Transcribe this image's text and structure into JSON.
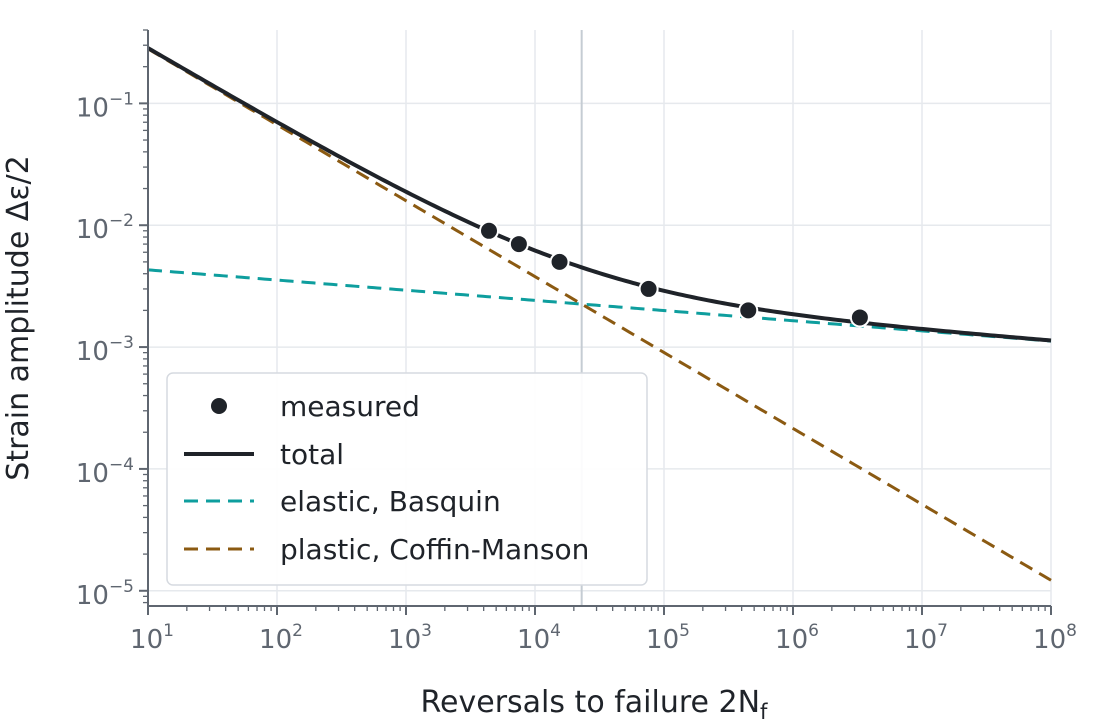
{
  "chart_data": {
    "type": "line",
    "xlabel": "Reversals to failure  2N",
    "xlabel_sub": "f",
    "ylabel": "Strain amplitude  Δε/2",
    "x_scale": "log",
    "y_scale": "log",
    "xlim": [
      10,
      100000000
    ],
    "ylim": [
      7.5e-06,
      0.4
    ],
    "grid": true,
    "legend_position": "lower-left",
    "transition_x": 23000,
    "x_ticks": [
      {
        "base": "10",
        "exp": "1",
        "value": 10
      },
      {
        "base": "10",
        "exp": "2",
        "value": 100
      },
      {
        "base": "10",
        "exp": "3",
        "value": 1000
      },
      {
        "base": "10",
        "exp": "4",
        "value": 10000
      },
      {
        "base": "10",
        "exp": "5",
        "value": 100000
      },
      {
        "base": "10",
        "exp": "6",
        "value": 1000000
      },
      {
        "base": "10",
        "exp": "7",
        "value": 10000000
      },
      {
        "base": "10",
        "exp": "8",
        "value": 100000000
      }
    ],
    "y_ticks": [
      {
        "base": "10",
        "exp": "−1",
        "value": 0.1
      },
      {
        "base": "10",
        "exp": "−2",
        "value": 0.01
      },
      {
        "base": "10",
        "exp": "−3",
        "value": 0.001
      },
      {
        "base": "10",
        "exp": "−4",
        "value": 0.0001
      },
      {
        "base": "10",
        "exp": "−5",
        "value": 1e-05
      }
    ],
    "series": [
      {
        "name": "measured",
        "kind": "points",
        "color": "#1f2329",
        "points": [
          {
            "x": 4400,
            "y": 0.009
          },
          {
            "x": 7500,
            "y": 0.007
          },
          {
            "x": 15500,
            "y": 0.005
          },
          {
            "x": 76000,
            "y": 0.003
          },
          {
            "x": 450000,
            "y": 0.002
          },
          {
            "x": 3300000,
            "y": 0.00175
          }
        ]
      },
      {
        "name": "total",
        "kind": "line",
        "color": "#1f2329",
        "dash": "solid"
      },
      {
        "name": "elastic, Basquin",
        "kind": "line",
        "color": "#0e9e9e",
        "dash": "dashed",
        "line": {
          "x": [
            10,
            100000000
          ],
          "y": [
            0.0043,
            0.00112
          ]
        }
      },
      {
        "name": "plastic, Coffin-Manson",
        "kind": "line",
        "color": "#8b5a12",
        "dash": "dashed",
        "line": {
          "x": [
            10,
            100000000
          ],
          "y": [
            0.28,
            1.22e-05
          ]
        }
      }
    ]
  }
}
